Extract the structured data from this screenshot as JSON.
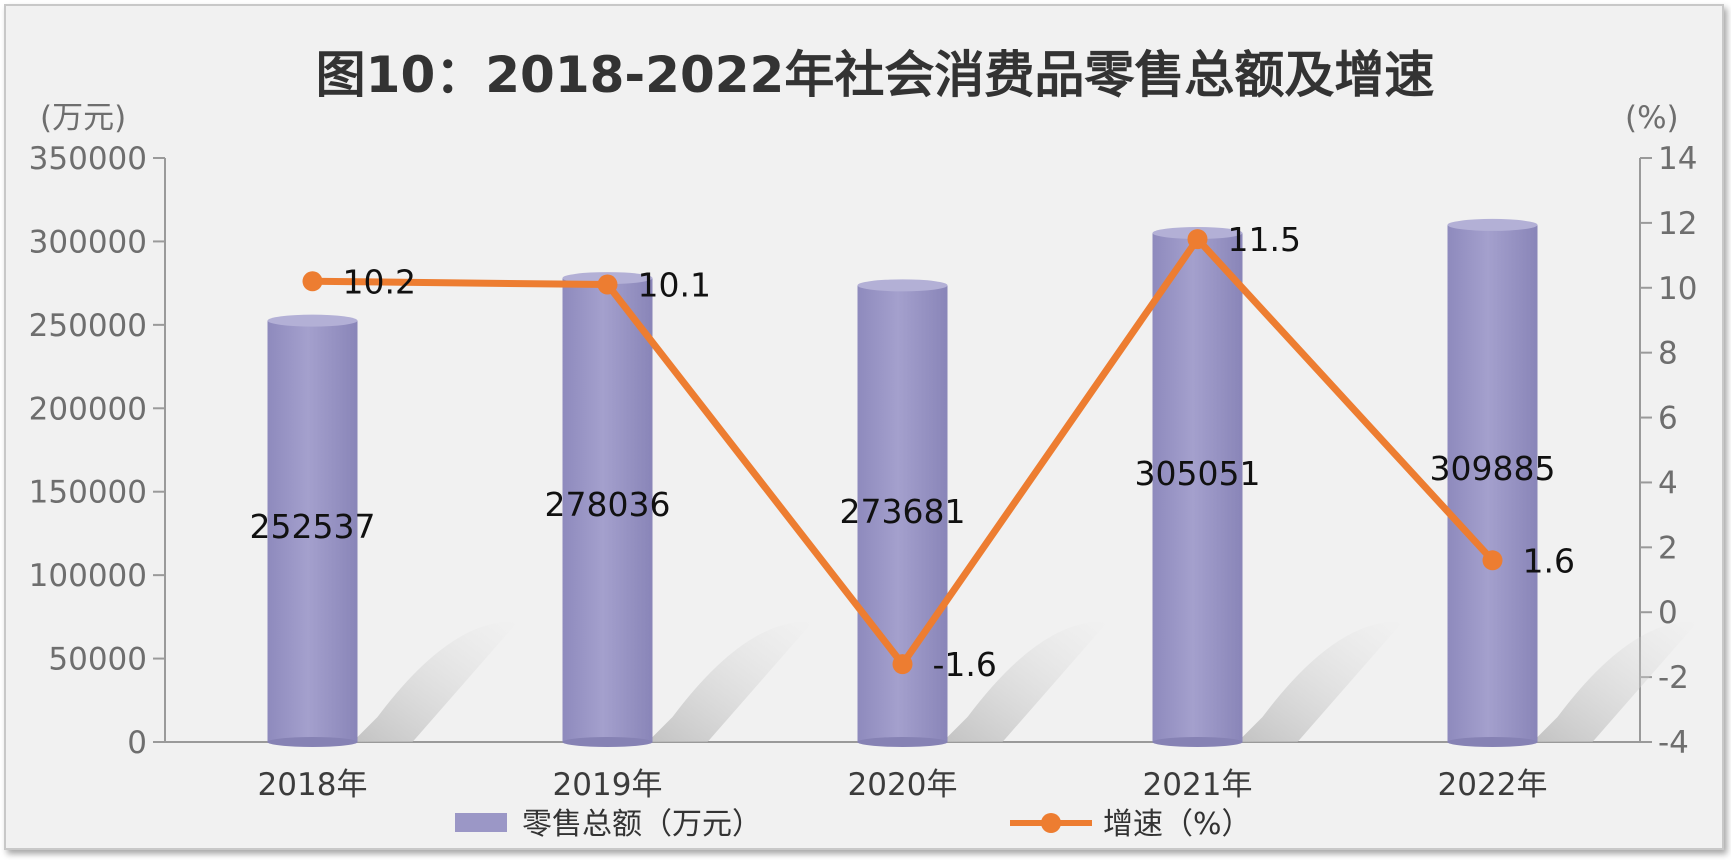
{
  "chart_data": {
    "type": "bar",
    "title": "图10：2018-2022年社会消费品零售总额及增速",
    "categories": [
      "2018年",
      "2019年",
      "2020年",
      "2021年",
      "2022年"
    ],
    "y_left": {
      "unit_label": "(万元)",
      "range": [
        0,
        350000
      ],
      "ticks": [
        0,
        50000,
        100000,
        150000,
        200000,
        250000,
        300000,
        350000
      ]
    },
    "y_right": {
      "unit_label": "(%)",
      "range": [
        -4,
        14
      ],
      "ticks": [
        -4,
        -2,
        0,
        2,
        4,
        6,
        8,
        10,
        12,
        14
      ]
    },
    "series": [
      {
        "name": "零售总额（万元）",
        "type": "bar",
        "axis": "left",
        "color": "#9b97c6",
        "values": [
          252537,
          278036,
          273681,
          305051,
          309885
        ],
        "labels": [
          "252537",
          "278036",
          "273681",
          "305051",
          "309885"
        ]
      },
      {
        "name": "增速（%）",
        "type": "line",
        "axis": "right",
        "color": "#ed7d31",
        "values": [
          10.2,
          10.1,
          -1.6,
          11.5,
          1.6
        ],
        "labels": [
          "10.2",
          "10.1",
          "-1.6",
          "11.5",
          "1.6"
        ]
      }
    ],
    "legend_position": "bottom",
    "grid": false
  }
}
